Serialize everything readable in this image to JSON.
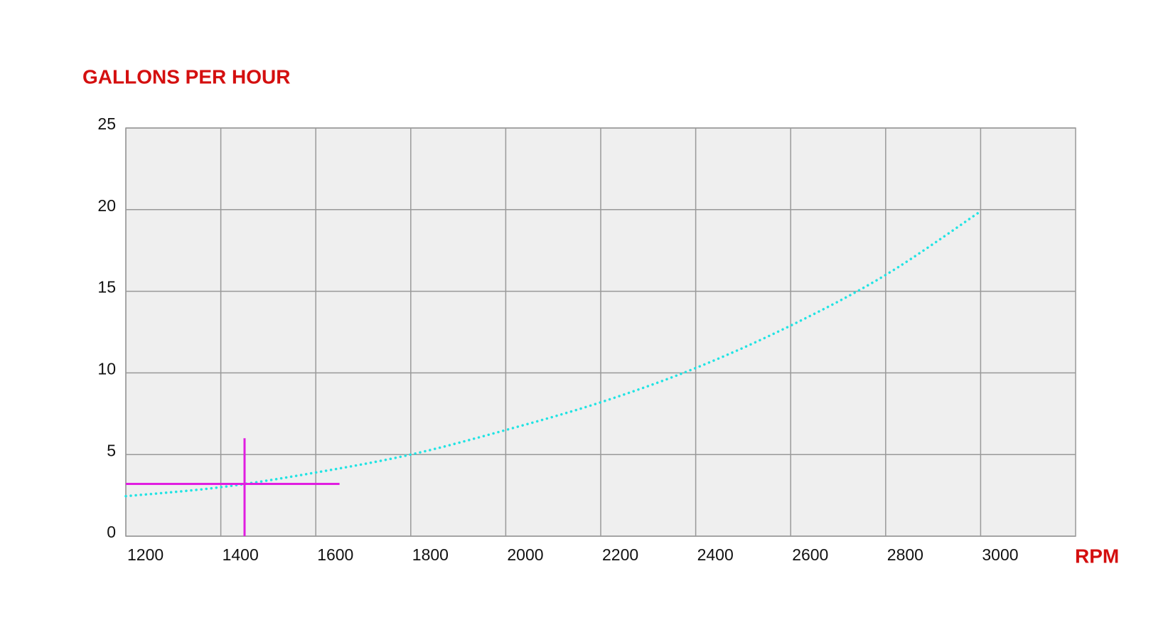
{
  "chart_data": {
    "type": "line",
    "y_label": "GALLONS PER HOUR",
    "x_label": "RPM",
    "x": [
      1200,
      1400,
      1600,
      1800,
      2000,
      2200,
      2400,
      2600,
      2800,
      3000
    ],
    "series": [
      {
        "color": "#22e3e3",
        "values": [
          2.45,
          3.0,
          3.9,
          5.0,
          6.5,
          8.2,
          10.3,
          12.9,
          16.0,
          19.9
        ]
      }
    ],
    "xlim": [
      1200,
      3200
    ],
    "xticks": [
      1200,
      1400,
      1600,
      1800,
      2000,
      2200,
      2400,
      2600,
      2800,
      3000
    ],
    "ylim": [
      0,
      25
    ],
    "yticks": [
      0,
      5,
      10,
      15,
      20,
      25
    ],
    "grid": true,
    "marker": {
      "x": 1450,
      "y": 3.2,
      "x_extent": [
        1200,
        1650
      ],
      "y_extent": [
        0,
        6
      ],
      "color": "#e01ee0"
    }
  }
}
